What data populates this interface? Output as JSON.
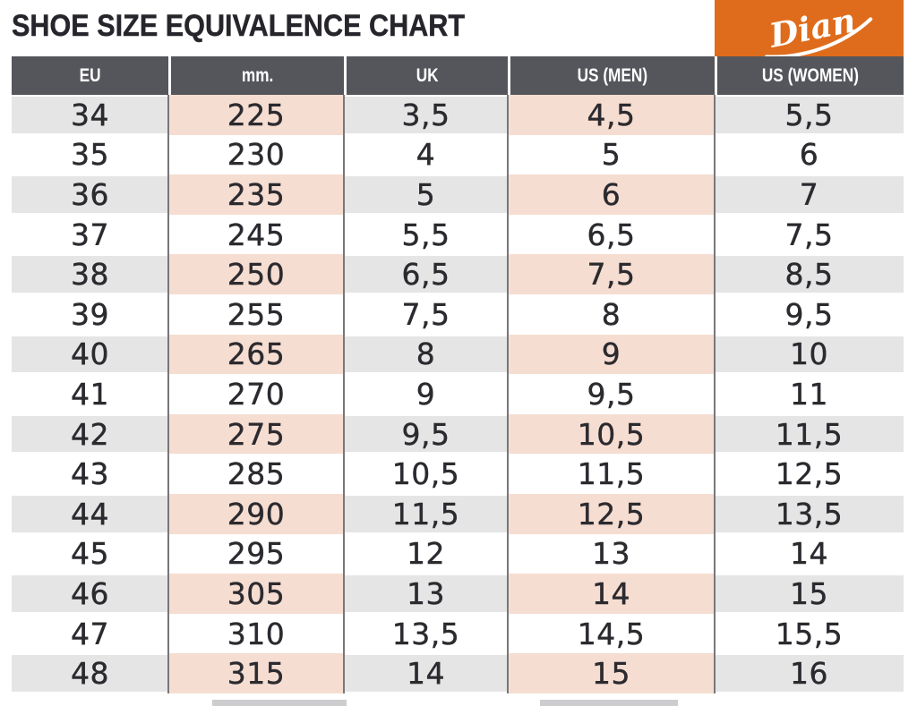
{
  "page": {
    "title": "SHOE SIZE EQUIVALENCE CHART"
  },
  "brand": {
    "name": "Dian",
    "bg_color": "#DF6C1C"
  },
  "colors": {
    "brand_orange": "#DF6C1C",
    "header_gray": "#55565C",
    "row_gray": "#E5E5E6",
    "row_pink": "#F6DDD1",
    "text_dark": "#26252B",
    "separator_gray": "#77777B"
  },
  "chart_data": {
    "type": "table",
    "title": "SHOE SIZE EQUIVALENCE CHART",
    "columns": [
      "EU",
      "mm.",
      "UK",
      "US (MEN)",
      "US (WOMEN)"
    ],
    "highlight_columns": [
      "mm.",
      "US (MEN)"
    ],
    "shading_note": "odd rows shaded gray; mm. and US (MEN) cells shaded pink on those rows",
    "rows": [
      [
        "34",
        "225",
        "3,5",
        "4,5",
        "5,5"
      ],
      [
        "35",
        "230",
        "4",
        "5",
        "6"
      ],
      [
        "36",
        "235",
        "5",
        "6",
        "7"
      ],
      [
        "37",
        "245",
        "5,5",
        "6,5",
        "7,5"
      ],
      [
        "38",
        "250",
        "6,5",
        "7,5",
        "8,5"
      ],
      [
        "39",
        "255",
        "7,5",
        "8",
        "9,5"
      ],
      [
        "40",
        "265",
        "8",
        "9",
        "10"
      ],
      [
        "41",
        "270",
        "9",
        "9,5",
        "11"
      ],
      [
        "42",
        "275",
        "9,5",
        "10,5",
        "11,5"
      ],
      [
        "43",
        "285",
        "10,5",
        "11,5",
        "12,5"
      ],
      [
        "44",
        "290",
        "11,5",
        "12,5",
        "13,5"
      ],
      [
        "45",
        "295",
        "12",
        "13",
        "14"
      ],
      [
        "46",
        "305",
        "13",
        "14",
        "15"
      ],
      [
        "47",
        "310",
        "13,5",
        "14,5",
        "15,5"
      ],
      [
        "48",
        "315",
        "14",
        "15",
        "16"
      ]
    ]
  }
}
